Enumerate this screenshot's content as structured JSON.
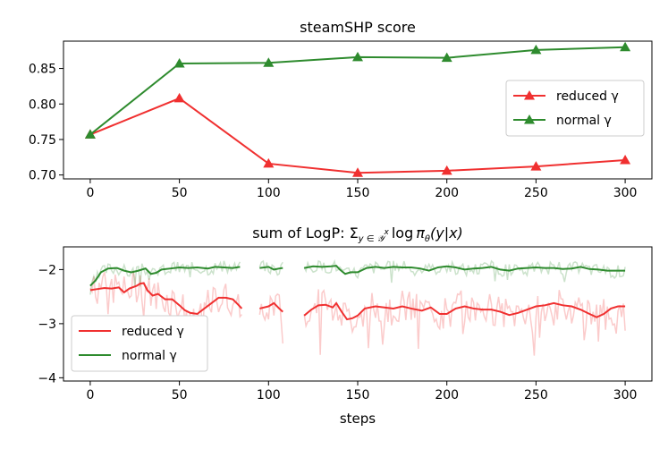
{
  "chart_data": [
    {
      "type": "line",
      "title": "steamSHP score",
      "xlabel": "",
      "ylabel": "",
      "x": [
        0,
        50,
        100,
        150,
        200,
        250,
        300
      ],
      "xticks": [
        "0",
        "50",
        "100",
        "150",
        "200",
        "250",
        "300"
      ],
      "yticks": [
        "0.70",
        "0.75",
        "0.80",
        "0.85"
      ],
      "ytick_values": [
        0.7,
        0.75,
        0.8,
        0.85
      ],
      "xlim": [
        -15,
        315
      ],
      "ylim": [
        0.6945,
        0.8885
      ],
      "legend_position": "center-right",
      "series": [
        {
          "name": "reduced γ",
          "color": "#f03030",
          "marker": "triangle",
          "values": [
            0.757,
            0.808,
            0.716,
            0.703,
            0.706,
            0.712,
            0.721
          ]
        },
        {
          "name": "normal γ",
          "color": "#2e8b2e",
          "marker": "triangle",
          "values": [
            0.757,
            0.857,
            0.858,
            0.866,
            0.865,
            0.876,
            0.88
          ]
        }
      ]
    },
    {
      "type": "line",
      "title": "sum of LogP: Σ",
      "title_math": {
        "sub": "y ∈ 𝒴",
        "sup": "x",
        "log": "log",
        "pi": "π",
        "theta": "θ",
        "arg": "(y|x)"
      },
      "xlabel": "steps",
      "ylabel": "",
      "xticks": [
        "0",
        "50",
        "100",
        "150",
        "200",
        "250",
        "300"
      ],
      "xtick_values": [
        0,
        50,
        100,
        150,
        200,
        250,
        300
      ],
      "yticks": [
        "−4",
        "−3",
        "−2"
      ],
      "ytick_values": [
        -4,
        -3,
        -2
      ],
      "xlim": [
        -15,
        315
      ],
      "ylim": [
        -4.06,
        -1.58
      ],
      "legend_position": "lower-left",
      "series": [
        {
          "name": "reduced γ",
          "color": "#f03030",
          "smooth": [
            [
              0,
              -2.38
            ],
            [
              4,
              -2.36
            ],
            [
              8,
              -2.34
            ],
            [
              12,
              -2.35
            ],
            [
              16,
              -2.33
            ],
            [
              19,
              -2.42
            ],
            [
              22,
              -2.35
            ],
            [
              26,
              -2.3
            ],
            [
              28,
              -2.26
            ],
            [
              30,
              -2.25
            ],
            [
              32,
              -2.38
            ],
            [
              35,
              -2.48
            ],
            [
              38,
              -2.45
            ],
            [
              42,
              -2.55
            ],
            [
              46,
              -2.55
            ],
            [
              50,
              -2.66
            ],
            [
              53,
              -2.75
            ],
            [
              56,
              -2.8
            ],
            [
              60,
              -2.82
            ],
            [
              64,
              -2.72
            ],
            [
              68,
              -2.62
            ],
            [
              72,
              -2.52
            ],
            [
              76,
              -2.52
            ],
            [
              80,
              -2.55
            ],
            [
              83,
              -2.65
            ],
            [
              85,
              -2.72
            ],
            null,
            [
              95,
              -2.72
            ],
            [
              100,
              -2.68
            ],
            [
              103,
              -2.62
            ],
            [
              106,
              -2.72
            ],
            [
              108,
              -2.78
            ],
            null,
            [
              120,
              -2.85
            ],
            [
              124,
              -2.74
            ],
            [
              128,
              -2.66
            ],
            [
              132,
              -2.65
            ],
            [
              136,
              -2.7
            ],
            [
              138,
              -2.62
            ],
            [
              141,
              -2.78
            ],
            [
              144,
              -2.92
            ],
            [
              147,
              -2.9
            ],
            [
              150,
              -2.85
            ],
            [
              154,
              -2.72
            ],
            [
              160,
              -2.68
            ],
            [
              165,
              -2.7
            ],
            [
              170,
              -2.72
            ],
            [
              175,
              -2.68
            ],
            [
              180,
              -2.72
            ],
            [
              186,
              -2.76
            ],
            [
              191,
              -2.7
            ],
            [
              196,
              -2.82
            ],
            [
              200,
              -2.82
            ],
            [
              205,
              -2.72
            ],
            [
              210,
              -2.68
            ],
            [
              215,
              -2.72
            ],
            [
              220,
              -2.74
            ],
            [
              225,
              -2.74
            ],
            [
              230,
              -2.78
            ],
            [
              235,
              -2.84
            ],
            [
              240,
              -2.8
            ],
            [
              245,
              -2.74
            ],
            [
              250,
              -2.68
            ],
            [
              255,
              -2.66
            ],
            [
              260,
              -2.62
            ],
            [
              265,
              -2.66
            ],
            [
              270,
              -2.68
            ],
            [
              275,
              -2.74
            ],
            [
              280,
              -2.82
            ],
            [
              284,
              -2.88
            ],
            [
              288,
              -2.82
            ],
            [
              292,
              -2.72
            ],
            [
              296,
              -2.68
            ],
            [
              300,
              -2.68
            ]
          ],
          "raw_seed": 7
        },
        {
          "name": "normal γ",
          "color": "#2e8b2e",
          "smooth": [
            [
              0,
              -2.3
            ],
            [
              3,
              -2.2
            ],
            [
              6,
              -2.05
            ],
            [
              10,
              -1.98
            ],
            [
              15,
              -1.97
            ],
            [
              19,
              -2.02
            ],
            [
              23,
              -2.05
            ],
            [
              27,
              -2.02
            ],
            [
              31,
              -1.98
            ],
            [
              34,
              -2.08
            ],
            [
              37,
              -2.06
            ],
            [
              40,
              -2.0
            ],
            [
              45,
              -1.98
            ],
            [
              50,
              -1.96
            ],
            [
              55,
              -1.97
            ],
            [
              60,
              -1.96
            ],
            [
              66,
              -1.98
            ],
            [
              70,
              -1.95
            ],
            [
              75,
              -1.96
            ],
            [
              80,
              -1.97
            ],
            [
              84,
              -1.95
            ],
            null,
            [
              95,
              -1.97
            ],
            [
              100,
              -1.95
            ],
            [
              103,
              -2.0
            ],
            [
              106,
              -1.98
            ],
            [
              108,
              -1.97
            ],
            null,
            [
              120,
              -1.97
            ],
            [
              125,
              -1.94
            ],
            [
              130,
              -1.95
            ],
            [
              135,
              -1.94
            ],
            [
              138,
              -1.93
            ],
            [
              140,
              -2.0
            ],
            [
              143,
              -2.08
            ],
            [
              146,
              -2.05
            ],
            [
              150,
              -2.05
            ],
            [
              155,
              -1.97
            ],
            [
              160,
              -1.95
            ],
            [
              165,
              -1.97
            ],
            [
              170,
              -1.95
            ],
            [
              175,
              -1.96
            ],
            [
              180,
              -1.96
            ],
            [
              185,
              -1.98
            ],
            [
              190,
              -2.02
            ],
            [
              195,
              -1.96
            ],
            [
              200,
              -1.94
            ],
            [
              205,
              -1.96
            ],
            [
              210,
              -2.0
            ],
            [
              215,
              -1.98
            ],
            [
              220,
              -1.97
            ],
            [
              225,
              -1.95
            ],
            [
              230,
              -2.0
            ],
            [
              235,
              -2.02
            ],
            [
              240,
              -1.98
            ],
            [
              245,
              -1.97
            ],
            [
              250,
              -1.96
            ],
            [
              255,
              -1.97
            ],
            [
              260,
              -1.97
            ],
            [
              265,
              -1.99
            ],
            [
              270,
              -1.98
            ],
            [
              275,
              -1.95
            ],
            [
              280,
              -1.99
            ],
            [
              285,
              -2.0
            ],
            [
              290,
              -2.02
            ],
            [
              295,
              -2.02
            ],
            [
              300,
              -2.02
            ]
          ],
          "raw_seed": 3
        }
      ]
    }
  ]
}
